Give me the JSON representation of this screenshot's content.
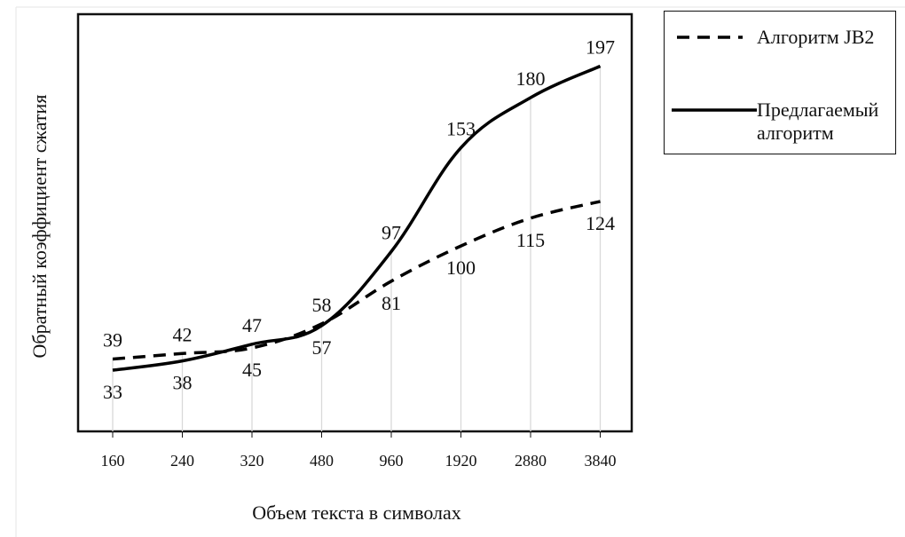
{
  "chart_data": {
    "type": "line",
    "categories": [
      "160",
      "240",
      "320",
      "480",
      "960",
      "1920",
      "2880",
      "3840"
    ],
    "series": [
      {
        "name": "Алгоритм JB2",
        "style": "dashed",
        "values": [
          39,
          42,
          45,
          58,
          81,
          100,
          115,
          124
        ]
      },
      {
        "name": "Предлагаемый алгоритм",
        "style": "solid",
        "values": [
          33,
          38,
          47,
          57,
          97,
          153,
          180,
          197
        ]
      }
    ],
    "xlabel": "Объем текста в символах",
    "ylabel": "Обратный коэффициент сжатия",
    "ylim": [
      0,
      225
    ],
    "grid": "vertical drop lines",
    "legend_position": "right",
    "colors": {
      "line": "#000000",
      "grid": "#d9d9d9"
    }
  },
  "legend": {
    "items": [
      {
        "label": "Алгоритм JB2"
      },
      {
        "label": "Предлагаемый алгоритм"
      }
    ]
  }
}
